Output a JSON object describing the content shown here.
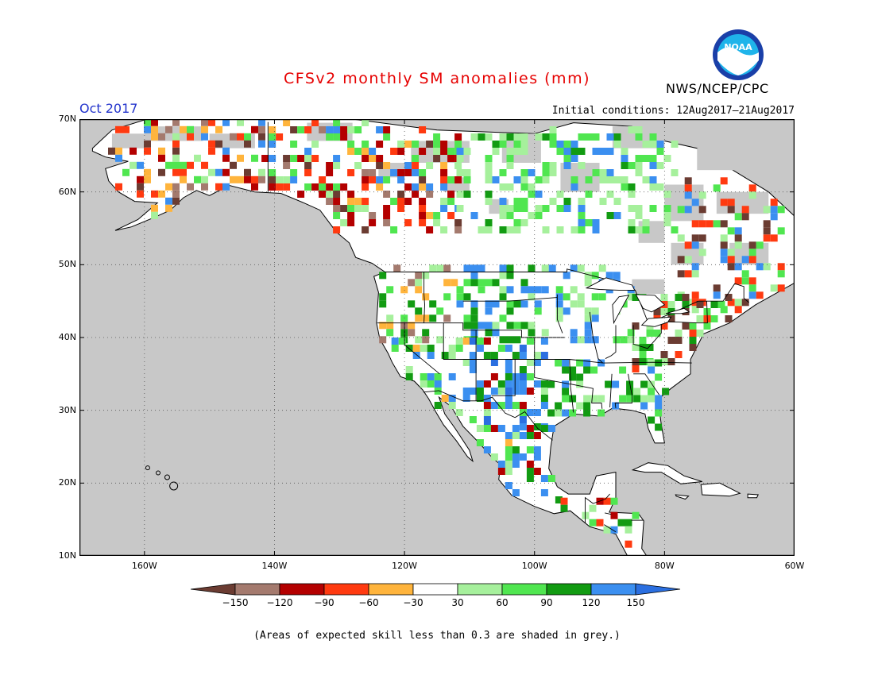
{
  "title": "CFSv2 monthly SM anomalies (mm)",
  "organization": "NWS/NCEP/CPC",
  "logo_text": "NOAA",
  "month_label": "Oct 2017",
  "initial_conditions": "Initial conditions: 12Aug2017–21Aug2017",
  "footnote": "(Areas of expected skill less than 0.3 are shaded in grey.)",
  "map": {
    "lat_range": [
      10,
      70
    ],
    "lon_range": [
      -170,
      -60
    ],
    "lat_ticks": [
      "10N",
      "20N",
      "30N",
      "40N",
      "50N",
      "60N",
      "70N"
    ],
    "lon_ticks": [
      "160W",
      "140W",
      "120W",
      "100W",
      "80W",
      "60W"
    ],
    "ocean_color": "#c8c8c8",
    "land_color": "#ffffff",
    "low_skill_color": "#c8c8c8"
  },
  "colorbar": {
    "tick_labels": [
      "−150",
      "−120",
      "−90",
      "−60",
      "−30",
      "30",
      "60",
      "90",
      "120",
      "150"
    ],
    "colors": [
      "#6b3c32",
      "#a47a6e",
      "#b40000",
      "#ff3a10",
      "#ffb43c",
      "#ffffff",
      "#a6f09c",
      "#50e650",
      "#129b12",
      "#3b8ff0",
      "#2b6fe0"
    ]
  }
}
